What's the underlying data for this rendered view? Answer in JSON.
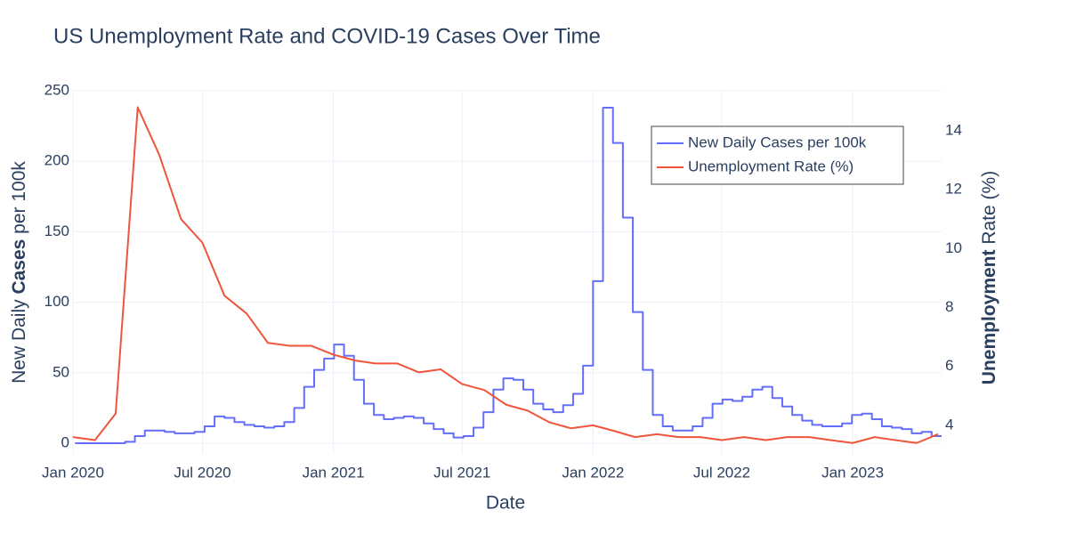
{
  "chart_data": {
    "type": "line",
    "title": "US Unemployment Rate and COVID-19 Cases Over Time",
    "x_title": "Date",
    "y_title": [
      {
        "text": "New Daily "
      },
      {
        "text": "Cases",
        "bold": true
      },
      {
        "text": " per 100k"
      }
    ],
    "y2_title": [
      {
        "text": "Unemployment",
        "bold": true
      },
      {
        "text": " Rate (%)"
      }
    ],
    "xlim": [
      "2020-01-01",
      "2023-05-06"
    ],
    "xticks": [
      {
        "value": "2020-01-01",
        "label": "Jan 2020"
      },
      {
        "value": "2020-07-01",
        "label": "Jul 2020"
      },
      {
        "value": "2021-01-01",
        "label": "Jan 2021"
      },
      {
        "value": "2021-07-01",
        "label": "Jul 2021"
      },
      {
        "value": "2022-01-01",
        "label": "Jan 2022"
      },
      {
        "value": "2022-07-01",
        "label": "Jul 2022"
      },
      {
        "value": "2023-01-01",
        "label": "Jan 2023"
      }
    ],
    "ylim": [
      -7.6,
      250
    ],
    "yticks": [
      0,
      50,
      100,
      150,
      200,
      250
    ],
    "y2lim": [
      3.03,
      15.36
    ],
    "y2ticks": [
      4,
      6,
      8,
      10,
      12,
      14
    ],
    "grid": true,
    "legend": "top-right",
    "series": [
      {
        "name": "New Daily Cases per 100k",
        "color": "#636efa",
        "axis": "y",
        "shape": "hv",
        "x": [
          "2020-01-04",
          "2020-01-18",
          "2020-02-01",
          "2020-02-15",
          "2020-02-29",
          "2020-03-14",
          "2020-03-28",
          "2020-04-11",
          "2020-04-25",
          "2020-05-09",
          "2020-05-23",
          "2020-06-06",
          "2020-06-20",
          "2020-07-04",
          "2020-07-18",
          "2020-08-01",
          "2020-08-15",
          "2020-08-29",
          "2020-09-12",
          "2020-09-26",
          "2020-10-10",
          "2020-10-24",
          "2020-11-07",
          "2020-11-21",
          "2020-12-05",
          "2020-12-19",
          "2021-01-02",
          "2021-01-16",
          "2021-01-30",
          "2021-02-13",
          "2021-02-27",
          "2021-03-13",
          "2021-03-27",
          "2021-04-10",
          "2021-04-24",
          "2021-05-08",
          "2021-05-22",
          "2021-06-05",
          "2021-06-19",
          "2021-07-03",
          "2021-07-17",
          "2021-07-31",
          "2021-08-14",
          "2021-08-28",
          "2021-09-11",
          "2021-09-25",
          "2021-10-09",
          "2021-10-23",
          "2021-11-06",
          "2021-11-20",
          "2021-12-04",
          "2021-12-18",
          "2022-01-01",
          "2022-01-15",
          "2022-01-29",
          "2022-02-12",
          "2022-02-26",
          "2022-03-12",
          "2022-03-26",
          "2022-04-09",
          "2022-04-23",
          "2022-05-07",
          "2022-05-21",
          "2022-06-04",
          "2022-06-18",
          "2022-07-02",
          "2022-07-16",
          "2022-07-30",
          "2022-08-13",
          "2022-08-27",
          "2022-09-10",
          "2022-09-24",
          "2022-10-08",
          "2022-10-22",
          "2022-11-05",
          "2022-11-19",
          "2022-12-03",
          "2022-12-17",
          "2022-12-31",
          "2023-01-14",
          "2023-01-28",
          "2023-02-11",
          "2023-02-25",
          "2023-03-11",
          "2023-03-25",
          "2023-04-08",
          "2023-04-22",
          "2023-05-06"
        ],
        "values": [
          0,
          0,
          0,
          0,
          0,
          1,
          5,
          9,
          9,
          8,
          7,
          7,
          8,
          12,
          19,
          18,
          15,
          13,
          12,
          11,
          12,
          15,
          25,
          40,
          52,
          60,
          70,
          62,
          45,
          28,
          20,
          17,
          18,
          19,
          18,
          14,
          10,
          7,
          4,
          5,
          11,
          22,
          38,
          46,
          45,
          38,
          28,
          24,
          22,
          27,
          35,
          55,
          115,
          238,
          213,
          160,
          93,
          52,
          20,
          12,
          9,
          9,
          12,
          18,
          28,
          31,
          30,
          33,
          38,
          40,
          32,
          26,
          20,
          16,
          13,
          12,
          12,
          14,
          20,
          21,
          17,
          12,
          11,
          10,
          7,
          8,
          5,
          5
        ]
      },
      {
        "name": "Unemployment Rate (%)",
        "color": "#EF553B",
        "axis": "y2",
        "x": [
          "2020-01-01",
          "2020-02-01",
          "2020-03-01",
          "2020-04-01",
          "2020-05-01",
          "2020-06-01",
          "2020-07-01",
          "2020-08-01",
          "2020-09-01",
          "2020-10-01",
          "2020-11-01",
          "2020-12-01",
          "2021-01-01",
          "2021-02-01",
          "2021-03-01",
          "2021-04-01",
          "2021-05-01",
          "2021-06-01",
          "2021-07-01",
          "2021-08-01",
          "2021-09-01",
          "2021-10-01",
          "2021-11-01",
          "2021-12-01",
          "2022-01-01",
          "2022-02-01",
          "2022-03-01",
          "2022-04-01",
          "2022-05-01",
          "2022-06-01",
          "2022-07-01",
          "2022-08-01",
          "2022-09-01",
          "2022-10-01",
          "2022-11-01",
          "2022-12-01",
          "2023-01-01",
          "2023-02-01",
          "2023-03-01",
          "2023-04-01",
          "2023-05-01"
        ],
        "values": [
          3.6,
          3.5,
          4.4,
          14.8,
          13.2,
          11.0,
          10.2,
          8.4,
          7.8,
          6.8,
          6.7,
          6.7,
          6.4,
          6.2,
          6.1,
          6.1,
          5.8,
          5.9,
          5.4,
          5.2,
          4.7,
          4.5,
          4.1,
          3.9,
          4.0,
          3.8,
          3.6,
          3.7,
          3.6,
          3.6,
          3.5,
          3.6,
          3.5,
          3.6,
          3.6,
          3.5,
          3.4,
          3.6,
          3.5,
          3.4,
          3.7
        ]
      }
    ]
  }
}
